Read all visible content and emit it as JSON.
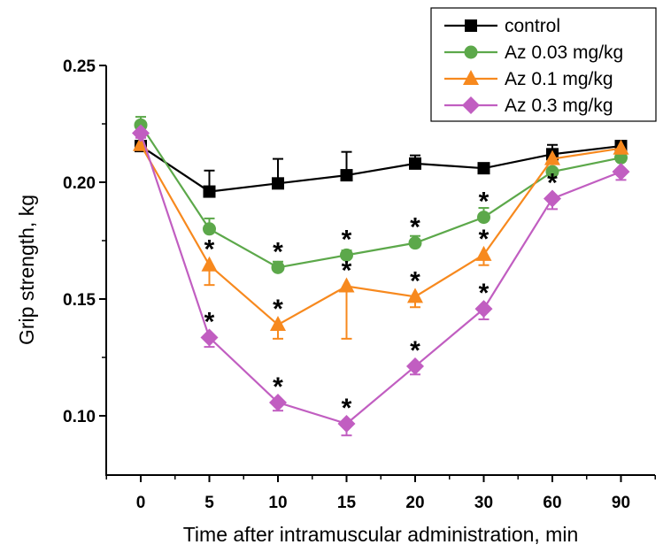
{
  "chart_data": {
    "type": "line",
    "title": "",
    "xlabel": "Time after intramuscular administration, min",
    "ylabel": "Grip strength, kg",
    "categories": [
      "0",
      "5",
      "10",
      "15",
      "20",
      "30",
      "60",
      "90"
    ],
    "x_axis_type": "categorical",
    "ylim": [
      0.075,
      0.25
    ],
    "yticks": [
      0.1,
      0.15,
      0.2,
      0.25
    ],
    "ytick_labels": [
      "0.10",
      "0.15",
      "0.20",
      "0.25"
    ],
    "grid": false,
    "legend_position": "top-right",
    "series": [
      {
        "name": "control",
        "color": "#000000",
        "marker": "square",
        "values": [
          0.2155,
          0.196,
          0.1995,
          0.203,
          0.208,
          0.206,
          0.212,
          0.2155
        ],
        "error": [
          0.001,
          0.009,
          0.0105,
          0.01,
          0.0035,
          0.0,
          0.004,
          0.002
        ],
        "error_direction": "up",
        "significant": [
          false,
          false,
          false,
          false,
          false,
          false,
          false,
          false
        ]
      },
      {
        "name": "Az 0.03 mg/kg",
        "color": "#5ca84a",
        "marker": "circle",
        "values": [
          0.2245,
          0.18,
          0.1635,
          0.1688,
          0.174,
          0.185,
          0.2045,
          0.2105
        ],
        "error": [
          0.0035,
          0.0045,
          0.0025,
          0.002,
          0.003,
          0.004,
          0.001,
          0.001
        ],
        "error_direction": "up",
        "significant": [
          false,
          false,
          true,
          true,
          true,
          true,
          false,
          false
        ]
      },
      {
        "name": "Az 0.1 mg/kg",
        "color": "#f7891e",
        "marker": "triangle",
        "values": [
          0.216,
          0.1645,
          0.139,
          0.1555,
          0.151,
          0.169,
          0.21,
          0.2145
        ],
        "error": [
          0.002,
          0.0085,
          0.006,
          0.0225,
          0.0045,
          0.0045,
          0.001,
          0.001
        ],
        "error_direction": "down",
        "significant": [
          false,
          true,
          true,
          true,
          true,
          true,
          false,
          false
        ]
      },
      {
        "name": "Az 0.3 mg/kg",
        "color": "#c15ec1",
        "marker": "diamond",
        "values": [
          0.221,
          0.1335,
          0.1057,
          0.0966,
          0.1212,
          0.1458,
          0.193,
          0.2045
        ],
        "error": [
          0.002,
          0.004,
          0.0035,
          0.005,
          0.0035,
          0.0045,
          0.0045,
          0.0035
        ],
        "error_direction": "down",
        "significant": [
          false,
          true,
          true,
          true,
          true,
          true,
          true,
          false
        ]
      }
    ],
    "annotations": [
      {
        "text": "*",
        "meaning": "statistically significant vs control"
      }
    ]
  },
  "legend": {
    "items": [
      "control",
      "Az 0.03 mg/kg",
      "Az 0.1 mg/kg",
      "Az 0.3 mg/kg"
    ]
  }
}
